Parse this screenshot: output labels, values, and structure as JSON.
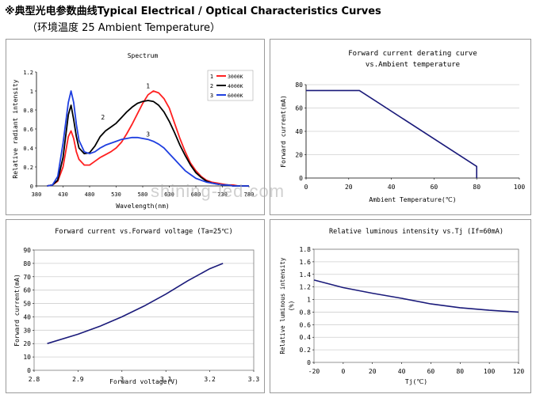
{
  "header": {
    "title": "※典型光电参数曲线Typical Electrical / Optical Characteristics Curves",
    "subtitle": "（环境温度 25 Ambient Temperature）"
  },
  "watermark": "shining-led.com",
  "colors": {
    "red": "#ff2020",
    "black": "#000000",
    "blue": "#1f3fe0",
    "navy": "#1a1a7a"
  },
  "chart_data": [
    {
      "id": "spectrum",
      "type": "line",
      "title": "Spectrum",
      "xlabel": "Wavelength(nm)",
      "ylabel": "Relative radiant intensity",
      "xlim": [
        380,
        780
      ],
      "ylim": [
        0,
        1.2
      ],
      "xticks": [
        380,
        430,
        480,
        530,
        580,
        630,
        680,
        730,
        780
      ],
      "yticks": [
        0,
        0.2,
        0.4,
        0.6,
        0.8,
        1,
        1.2
      ],
      "legend_position": "top-right",
      "series": [
        {
          "name": "3000K",
          "color": "#ff2020",
          "label": "1",
          "label_at": [
            590,
            1.03
          ],
          "x": [
            400,
            410,
            420,
            430,
            440,
            445,
            450,
            455,
            460,
            470,
            480,
            490,
            500,
            510,
            520,
            530,
            540,
            550,
            560,
            570,
            580,
            590,
            600,
            610,
            620,
            630,
            640,
            650,
            660,
            670,
            680,
            690,
            700,
            710,
            720,
            730,
            740,
            750,
            760,
            770,
            780
          ],
          "y": [
            0,
            0.01,
            0.05,
            0.2,
            0.52,
            0.58,
            0.5,
            0.36,
            0.28,
            0.22,
            0.22,
            0.26,
            0.3,
            0.33,
            0.36,
            0.4,
            0.46,
            0.55,
            0.65,
            0.76,
            0.87,
            0.96,
            1.0,
            0.98,
            0.92,
            0.82,
            0.66,
            0.5,
            0.36,
            0.24,
            0.16,
            0.1,
            0.06,
            0.04,
            0.03,
            0.02,
            0.01,
            0.01,
            0,
            0,
            0
          ]
        },
        {
          "name": "4000K",
          "color": "#000000",
          "label": "2",
          "label_at": [
            505,
            0.7
          ],
          "x": [
            400,
            410,
            420,
            430,
            440,
            445,
            450,
            455,
            460,
            470,
            480,
            490,
            500,
            510,
            520,
            530,
            540,
            550,
            560,
            570,
            580,
            590,
            600,
            610,
            620,
            630,
            640,
            650,
            660,
            670,
            680,
            690,
            700,
            710,
            720,
            730,
            740,
            750,
            760,
            770,
            780
          ],
          "y": [
            0,
            0.01,
            0.06,
            0.3,
            0.75,
            0.85,
            0.7,
            0.52,
            0.4,
            0.34,
            0.35,
            0.42,
            0.52,
            0.58,
            0.62,
            0.66,
            0.72,
            0.78,
            0.83,
            0.87,
            0.89,
            0.9,
            0.89,
            0.85,
            0.78,
            0.68,
            0.56,
            0.43,
            0.32,
            0.22,
            0.14,
            0.09,
            0.05,
            0.03,
            0.02,
            0.01,
            0.01,
            0,
            0,
            0,
            0
          ]
        },
        {
          "name": "6000K",
          "color": "#1f3fe0",
          "label": "3",
          "label_at": [
            590,
            0.52
          ],
          "x": [
            400,
            410,
            420,
            430,
            440,
            445,
            450,
            455,
            460,
            470,
            480,
            490,
            500,
            510,
            520,
            530,
            540,
            550,
            560,
            570,
            580,
            590,
            600,
            610,
            620,
            630,
            640,
            650,
            660,
            670,
            680,
            690,
            700,
            710,
            720,
            730,
            740,
            750,
            760,
            770,
            780
          ],
          "y": [
            0,
            0.01,
            0.1,
            0.45,
            0.88,
            1.0,
            0.88,
            0.65,
            0.48,
            0.36,
            0.34,
            0.36,
            0.4,
            0.43,
            0.45,
            0.47,
            0.49,
            0.5,
            0.51,
            0.51,
            0.5,
            0.49,
            0.47,
            0.44,
            0.4,
            0.34,
            0.28,
            0.22,
            0.16,
            0.12,
            0.08,
            0.06,
            0.04,
            0.03,
            0.02,
            0.01,
            0.01,
            0,
            0,
            0,
            0
          ]
        }
      ]
    },
    {
      "id": "derating",
      "type": "line",
      "title": "Forward current derating curve vs.Ambient temperature",
      "xlabel": "Ambient Temperature(℃)",
      "ylabel": "Forward current(mA)",
      "xlim": [
        0,
        100
      ],
      "ylim": [
        0,
        80
      ],
      "xticks": [
        0,
        20,
        40,
        60,
        80,
        100
      ],
      "yticks": [
        0,
        20,
        40,
        60,
        80
      ],
      "grid": true,
      "series": [
        {
          "name": "",
          "color": "#1a1a7a",
          "x": [
            0,
            25,
            80,
            80
          ],
          "y": [
            75,
            75,
            10,
            0
          ]
        }
      ]
    },
    {
      "id": "iv",
      "type": "line",
      "title": "Forward current vs.Forward voltage (Ta=25℃)",
      "xlabel": "Forward voltage(V)",
      "ylabel": "Forward current(mA)",
      "xlim": [
        2.8,
        3.3
      ],
      "ylim": [
        0,
        90
      ],
      "xticks": [
        "2.8",
        "2.9",
        "3",
        "3.1",
        "3.2",
        "3.3"
      ],
      "yticks": [
        0,
        10,
        20,
        30,
        40,
        50,
        60,
        70,
        80,
        90
      ],
      "grid": true,
      "series": [
        {
          "name": "",
          "color": "#1a1a7a",
          "x": [
            2.83,
            2.9,
            2.95,
            3.0,
            3.05,
            3.1,
            3.15,
            3.2,
            3.23
          ],
          "y": [
            20,
            27,
            33,
            40,
            48,
            57,
            67,
            76,
            80
          ]
        }
      ]
    },
    {
      "id": "luminous",
      "type": "line",
      "title": "Relative luminous intensity vs.Tj (If=60mA)",
      "xlabel": "Tj(℃)",
      "ylabel": "Relative luminous intensity (%)",
      "xlim": [
        -20,
        120
      ],
      "ylim": [
        0,
        1.8
      ],
      "xticks": [
        -20,
        0,
        20,
        40,
        60,
        80,
        100,
        120
      ],
      "yticks": [
        0,
        0.2,
        0.4,
        0.6,
        0.8,
        1,
        1.2,
        1.4,
        1.6,
        1.8
      ],
      "grid": true,
      "series": [
        {
          "name": "",
          "color": "#1a1a7a",
          "x": [
            -20,
            0,
            20,
            40,
            60,
            80,
            100,
            120
          ],
          "y": [
            1.31,
            1.19,
            1.1,
            1.02,
            0.93,
            0.87,
            0.83,
            0.8
          ]
        }
      ]
    }
  ]
}
